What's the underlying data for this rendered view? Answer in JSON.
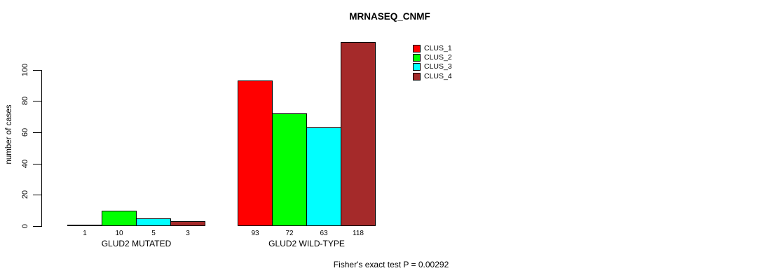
{
  "chart_data": {
    "type": "bar",
    "title": "MRNASEQ_CNMF",
    "xlabel": "",
    "ylabel": "number of cases",
    "ylim": [
      0,
      100
    ],
    "yticks": [
      0,
      20,
      40,
      60,
      80,
      100
    ],
    "grid": false,
    "legend_position": "top-right",
    "categories": [
      "GLUD2 MUTATED",
      "GLUD2 WILD-TYPE"
    ],
    "series": [
      {
        "name": "CLUS_1",
        "color": "#FF0000",
        "values": [
          1,
          93
        ]
      },
      {
        "name": "CLUS_2",
        "color": "#00FF00",
        "values": [
          10,
          72
        ]
      },
      {
        "name": "CLUS_3",
        "color": "#00FFFF",
        "values": [
          5,
          63
        ]
      },
      {
        "name": "CLUS_4",
        "color": "#A52A2A",
        "values": [
          3,
          118
        ]
      }
    ],
    "bar_labels": [
      [
        "1",
        "10",
        "5",
        "3"
      ],
      [
        "93",
        "72",
        "63",
        "118"
      ]
    ],
    "footer": "Fisher's exact test P = 0.00292"
  }
}
